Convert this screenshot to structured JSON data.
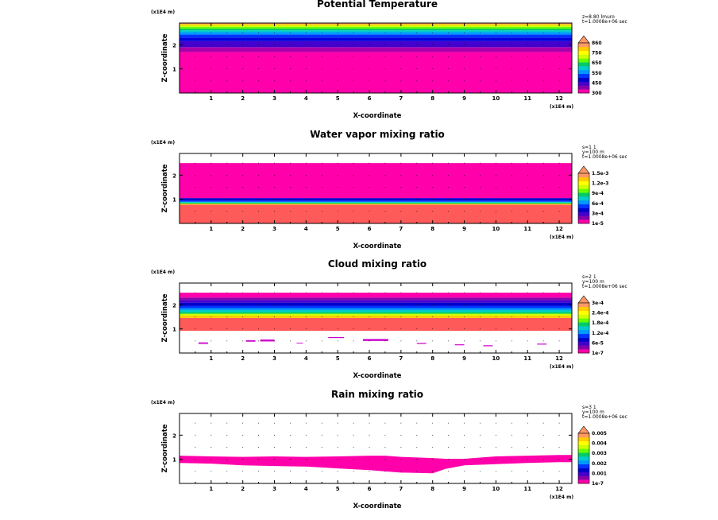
{
  "chart_data": [
    {
      "type": "heatmap",
      "title": "Potential Temperature",
      "xlabel": "X-coordinate",
      "ylabel": "Z-coordinate",
      "x_unit": "(x1E4 m)",
      "z_unit": "(x1E4 m)",
      "xlim": [
        0,
        12.4
      ],
      "zlim": [
        0,
        2.9
      ],
      "x_ticks": [
        "1",
        "2",
        "3",
        "4",
        "5",
        "6",
        "7",
        "8",
        "9",
        "10",
        "11",
        "12"
      ],
      "z_ticks": [
        "1",
        "2"
      ],
      "info": [
        "z=8.80 lmuro",
        "t=1.0008e+06 sec"
      ],
      "colorbar": {
        "labels": [
          "300",
          "450",
          "550",
          "650",
          "750",
          "860"
        ],
        "colors": [
          "#ff00aa",
          "#8800aa",
          "#4400cc",
          "#0000cc",
          "#0033ff",
          "#0099ff",
          "#00cccc",
          "#00cc66",
          "#66ff00",
          "#ccff00",
          "#ffff00",
          "#ffcc00",
          "#ff9966"
        ]
      },
      "bands": [
        {
          "z0": 0.0,
          "z1": 1.7,
          "color": "#ff00aa"
        },
        {
          "z0": 1.7,
          "z1": 1.9,
          "color": "#aa00aa"
        },
        {
          "z0": 1.9,
          "z1": 2.15,
          "color": "#4400cc"
        },
        {
          "z0": 2.15,
          "z1": 2.3,
          "color": "#0000dd"
        },
        {
          "z0": 2.3,
          "z1": 2.42,
          "color": "#0033ff"
        },
        {
          "z0": 2.42,
          "z1": 2.52,
          "color": "#0099ff"
        },
        {
          "z0": 2.52,
          "z1": 2.6,
          "color": "#00cccc"
        },
        {
          "z0": 2.6,
          "z1": 2.67,
          "color": "#00cc66"
        },
        {
          "z0": 2.67,
          "z1": 2.74,
          "color": "#66ff00"
        },
        {
          "z0": 2.74,
          "z1": 2.8,
          "color": "#ccff00"
        },
        {
          "z0": 2.8,
          "z1": 2.86,
          "color": "#ffcc00"
        },
        {
          "z0": 2.86,
          "z1": 2.9,
          "color": "#ff9966"
        }
      ],
      "specks": []
    },
    {
      "type": "heatmap",
      "title": "Water vapor mixing ratio",
      "xlabel": "X-coordinate",
      "ylabel": "Z-coordinate",
      "x_unit": "(x1E4 m)",
      "z_unit": "(x1E4 m)",
      "xlim": [
        0,
        12.4
      ],
      "zlim": [
        0,
        2.9
      ],
      "x_ticks": [
        "1",
        "2",
        "3",
        "4",
        "5",
        "6",
        "7",
        "8",
        "9",
        "10",
        "11",
        "12"
      ],
      "z_ticks": [
        "1",
        "2"
      ],
      "info": [
        "s=1 1",
        "y=100 m",
        "t=1.0008e+06 sec"
      ],
      "colorbar": {
        "labels": [
          "1e-5",
          "3e-4",
          "6e-4",
          "9e-4",
          "1.2e-3",
          "1.5e-3"
        ],
        "colors": [
          "#ff00aa",
          "#8800aa",
          "#4400cc",
          "#0000cc",
          "#0033ff",
          "#0099ff",
          "#00cccc",
          "#00cc66",
          "#66ff00",
          "#ccff00",
          "#ffff00",
          "#ffcc00",
          "#ff9966"
        ]
      },
      "bands": [
        {
          "z0": 0.0,
          "z1": 0.78,
          "color": "#ff5a5a"
        },
        {
          "z0": 0.78,
          "z1": 0.82,
          "color": "#ffcc00"
        },
        {
          "z0": 0.82,
          "z1": 0.86,
          "color": "#00cc66"
        },
        {
          "z0": 0.86,
          "z1": 0.9,
          "color": "#00cccc"
        },
        {
          "z0": 0.9,
          "z1": 0.96,
          "color": "#0033ff"
        },
        {
          "z0": 0.96,
          "z1": 1.05,
          "color": "#0000cc"
        },
        {
          "z0": 1.05,
          "z1": 2.5,
          "color": "#ff00aa"
        }
      ],
      "specks": []
    },
    {
      "type": "heatmap",
      "title": "Cloud mixing ratio",
      "xlabel": "X-coordinate",
      "ylabel": "Z-coordinate",
      "x_unit": "(x1E4 m)",
      "z_unit": "(x1E4 m)",
      "xlim": [
        0,
        12.4
      ],
      "zlim": [
        0,
        2.9
      ],
      "x_ticks": [
        "1",
        "2",
        "3",
        "4",
        "5",
        "6",
        "7",
        "8",
        "9",
        "10",
        "11",
        "12"
      ],
      "z_ticks": [
        "1",
        "2"
      ],
      "info": [
        "s=2 1",
        "y=100 m",
        "t=1.0008e+06 sec"
      ],
      "colorbar": {
        "labels": [
          "1e-7",
          "6e-5",
          "1.2e-4",
          "1.8e-4",
          "2.4e-4",
          "3e-4"
        ],
        "colors": [
          "#ff00aa",
          "#8800aa",
          "#4400cc",
          "#0000cc",
          "#0033ff",
          "#0099ff",
          "#00cccc",
          "#00cc66",
          "#66ff00",
          "#ccff00",
          "#ffff00",
          "#ffcc00",
          "#ff9966"
        ]
      },
      "bands": [
        {
          "z0": 0.92,
          "z1": 1.45,
          "color": "#ff5a5a"
        },
        {
          "z0": 1.45,
          "z1": 1.55,
          "color": "#ffcc00"
        },
        {
          "z0": 1.55,
          "z1": 1.63,
          "color": "#ccff00"
        },
        {
          "z0": 1.63,
          "z1": 1.7,
          "color": "#00cc66"
        },
        {
          "z0": 1.7,
          "z1": 1.78,
          "color": "#00cccc"
        },
        {
          "z0": 1.78,
          "z1": 1.86,
          "color": "#0099ff"
        },
        {
          "z0": 1.86,
          "z1": 1.96,
          "color": "#0033ff"
        },
        {
          "z0": 1.96,
          "z1": 2.08,
          "color": "#0000cc"
        },
        {
          "z0": 2.08,
          "z1": 2.2,
          "color": "#4400cc"
        },
        {
          "z0": 2.2,
          "z1": 2.3,
          "color": "#8800aa"
        },
        {
          "z0": 2.3,
          "z1": 2.5,
          "color": "#ff00aa"
        }
      ],
      "specks": [
        {
          "x0": 0.6,
          "x1": 0.9,
          "z0": 0.38,
          "z1": 0.44
        },
        {
          "x0": 2.1,
          "x1": 2.4,
          "z0": 0.47,
          "z1": 0.53
        },
        {
          "x0": 2.55,
          "x1": 3.0,
          "z0": 0.48,
          "z1": 0.56
        },
        {
          "x0": 5.8,
          "x1": 6.6,
          "z0": 0.5,
          "z1": 0.58
        },
        {
          "x0": 4.7,
          "x1": 5.2,
          "z0": 0.62,
          "z1": 0.66
        },
        {
          "x0": 8.7,
          "x1": 9.0,
          "z0": 0.32,
          "z1": 0.36
        },
        {
          "x0": 9.6,
          "x1": 9.9,
          "z0": 0.28,
          "z1": 0.32
        },
        {
          "x0": 11.3,
          "x1": 11.6,
          "z0": 0.35,
          "z1": 0.39
        },
        {
          "x0": 3.7,
          "x1": 3.9,
          "z0": 0.4,
          "z1": 0.43
        },
        {
          "x0": 7.5,
          "x1": 7.8,
          "z0": 0.38,
          "z1": 0.42
        }
      ]
    },
    {
      "type": "heatmap",
      "title": "Rain mixing ratio",
      "xlabel": "X-coordinate",
      "ylabel": "Z-coordinate",
      "x_unit": "(x1E4 m)",
      "z_unit": "(x1E4 m)",
      "xlim": [
        0,
        12.4
      ],
      "zlim": [
        0,
        2.9
      ],
      "x_ticks": [
        "1",
        "2",
        "3",
        "4",
        "5",
        "6",
        "7",
        "8",
        "9",
        "10",
        "11",
        "12"
      ],
      "z_ticks": [
        "1",
        "2"
      ],
      "info": [
        "s=3 1",
        "y=100 m",
        "t=1.0008e+06 sec"
      ],
      "colorbar": {
        "labels": [
          "1e-7",
          "0.001",
          "0.002",
          "0.003",
          "0.004",
          "0.005"
        ],
        "colors": [
          "#ff00aa",
          "#8800aa",
          "#4400cc",
          "#0000cc",
          "#0033ff",
          "#0099ff",
          "#00cccc",
          "#00cc66",
          "#66ff00",
          "#ccff00",
          "#ffff00",
          "#ffcc00",
          "#ff9966"
        ]
      },
      "rain_profile": {
        "x": [
          0,
          1,
          2,
          3,
          4,
          5,
          6,
          6.5,
          7,
          8,
          8.4,
          9,
          10,
          11,
          12,
          12.4
        ],
        "top": [
          1.15,
          1.12,
          1.1,
          1.12,
          1.1,
          1.12,
          1.15,
          1.15,
          1.1,
          1.05,
          1.02,
          1.02,
          1.12,
          1.15,
          1.18,
          1.18
        ],
        "bottom": [
          0.85,
          0.82,
          0.75,
          0.72,
          0.7,
          0.62,
          0.55,
          0.5,
          0.45,
          0.42,
          0.6,
          0.75,
          0.8,
          0.85,
          0.88,
          0.88
        ]
      },
      "bands": [],
      "specks": []
    }
  ]
}
